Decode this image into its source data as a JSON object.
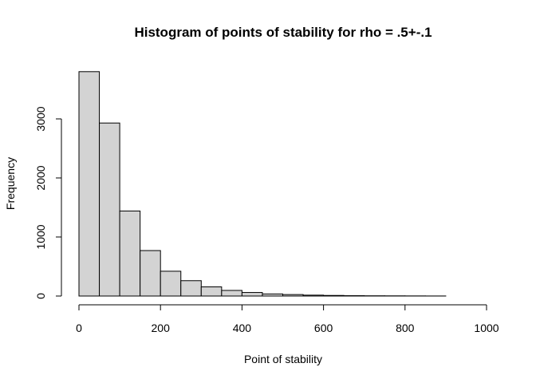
{
  "chart_data": {
    "type": "bar",
    "title": "Histogram of points of stability for rho = .5+-.1",
    "xlabel": "Point of stability",
    "ylabel": "Frequency",
    "bin_edges": [
      0,
      50,
      100,
      150,
      200,
      250,
      300,
      350,
      400,
      450,
      500,
      550,
      600,
      650,
      700,
      750,
      800,
      850,
      900
    ],
    "values": [
      3800,
      2930,
      1440,
      770,
      420,
      260,
      155,
      95,
      60,
      35,
      25,
      15,
      10,
      6,
      4,
      3,
      2,
      1
    ],
    "xlim": [
      0,
      1000
    ],
    "ylim": [
      0,
      3900
    ],
    "x_ticks": [
      0,
      200,
      400,
      600,
      800,
      1000
    ],
    "y_ticks": [
      0,
      1000,
      2000,
      3000
    ],
    "bar_color": "#d3d3d3",
    "edge_color": "#000000",
    "grid": false
  }
}
